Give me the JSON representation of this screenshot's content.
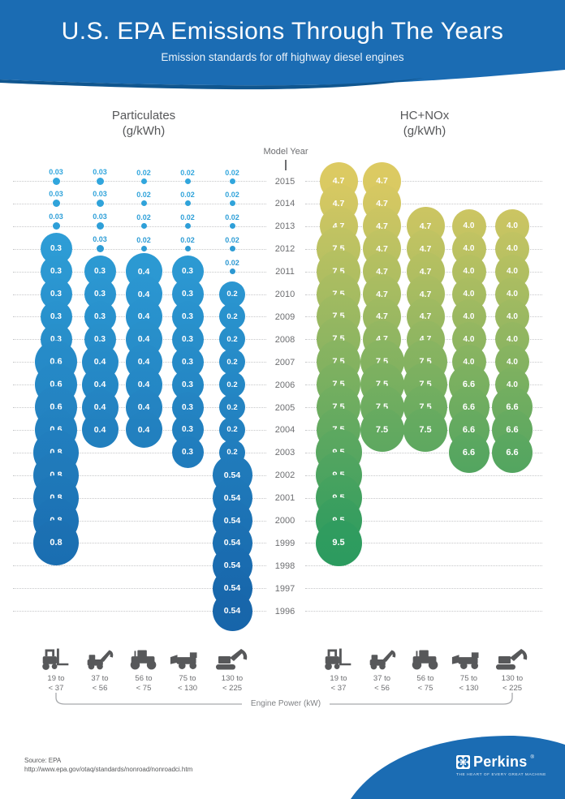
{
  "header": {
    "title": "U.S. EPA Emissions Through The Years",
    "subtitle": "Emission standards for off highway diesel engines"
  },
  "axis": {
    "label": "Model Year"
  },
  "chart_data": [
    {
      "type": "bubble",
      "title": "Particulates",
      "unit": "(g/kWh)",
      "gradient_top": "#31a6dd",
      "gradient_bottom": "#1765aa",
      "years": [
        "2015",
        "2014",
        "2013",
        "2012",
        "2011",
        "2010",
        "2009",
        "2008",
        "2007",
        "2006",
        "2005",
        "2004",
        "2003",
        "2002",
        "2001",
        "2000",
        "1999",
        "1998",
        "1997",
        "1996"
      ],
      "series": [
        {
          "name": "19 to < 37 kW",
          "values": [
            "0.03",
            "0.03",
            "0.03",
            "0.3",
            "0.3",
            "0.3",
            "0.3",
            "0.3",
            "0.6",
            "0.6",
            "0.6",
            "0.6",
            "0.8",
            "0.8",
            "0.8",
            "0.8",
            "0.8",
            null,
            null,
            null
          ]
        },
        {
          "name": "37 to < 56 kW",
          "values": [
            "0.03",
            "0.03",
            "0.03",
            "0.03",
            "0.3",
            "0.3",
            "0.3",
            "0.3",
            "0.4",
            "0.4",
            "0.4",
            "0.4",
            null,
            null,
            null,
            null,
            null,
            null,
            null,
            null
          ]
        },
        {
          "name": "56 to < 75 kW",
          "values": [
            "0.02",
            "0.02",
            "0.02",
            "0.02",
            "0.4",
            "0.4",
            "0.4",
            "0.4",
            "0.4",
            "0.4",
            "0.4",
            "0.4",
            null,
            null,
            null,
            null,
            null,
            null,
            null,
            null
          ]
        },
        {
          "name": "75 to < 130 kW",
          "values": [
            "0.02",
            "0.02",
            "0.02",
            "0.02",
            "0.3",
            "0.3",
            "0.3",
            "0.3",
            "0.3",
            "0.3",
            "0.3",
            "0.3",
            "0.3",
            null,
            null,
            null,
            null,
            null,
            null,
            null
          ]
        },
        {
          "name": "130 to < 225 kW",
          "values": [
            "0.02",
            "0.02",
            "0.02",
            "0.02",
            "0.02",
            "0.2",
            "0.2",
            "0.2",
            "0.2",
            "0.2",
            "0.2",
            "0.2",
            "0.2",
            "0.54",
            "0.54",
            "0.54",
            "0.54",
            "0.54",
            "0.54",
            "0.54"
          ]
        }
      ]
    },
    {
      "type": "bubble",
      "title": "HC+NOx",
      "unit": "(g/kWh)",
      "gradient_top": "#ddca62",
      "gradient_bottom": "#2c9b5f",
      "years": [
        "2015",
        "2014",
        "2013",
        "2012",
        "2011",
        "2010",
        "2009",
        "2008",
        "2007",
        "2006",
        "2005",
        "2004",
        "2003",
        "2002",
        "2001",
        "2000",
        "1999",
        "1998",
        "1997",
        "1996"
      ],
      "series": [
        {
          "name": "19 to < 37 kW",
          "values": [
            "4.7",
            "4.7",
            "4.7",
            "7.5",
            "7.5",
            "7.5",
            "7.5",
            "7.5",
            "7.5",
            "7.5",
            "7.5",
            "7.5",
            "9.5",
            "9.5",
            "9.5",
            "9.5",
            "9.5",
            null,
            null,
            null
          ]
        },
        {
          "name": "37 to < 56 kW",
          "values": [
            "4.7",
            "4.7",
            "4.7",
            "4.7",
            "4.7",
            "4.7",
            "4.7",
            "4.7",
            "7.5",
            "7.5",
            "7.5",
            "7.5",
            null,
            null,
            null,
            null,
            null,
            null,
            null,
            null
          ]
        },
        {
          "name": "56 to < 75 kW",
          "values": [
            null,
            null,
            "4.7",
            "4.7",
            "4.7",
            "4.7",
            "4.7",
            "4.7",
            "7.5",
            "7.5",
            "7.5",
            "7.5",
            null,
            null,
            null,
            null,
            null,
            null,
            null,
            null
          ]
        },
        {
          "name": "75 to < 130 kW",
          "values": [
            null,
            null,
            "4.0",
            "4.0",
            "4.0",
            "4.0",
            "4.0",
            "4.0",
            "4.0",
            "6.6",
            "6.6",
            "6.6",
            "6.6",
            null,
            null,
            null,
            null,
            null,
            null,
            null
          ]
        },
        {
          "name": "130 to < 225 kW",
          "values": [
            null,
            null,
            "4.0",
            "4.0",
            "4.0",
            "4.0",
            "4.0",
            "4.0",
            "4.0",
            "4.0",
            "6.6",
            "6.6",
            "6.6",
            null,
            null,
            null,
            null,
            null,
            null,
            null
          ]
        }
      ]
    }
  ],
  "legend": {
    "engine_power_label": "Engine Power (kW)",
    "items": [
      {
        "icon": "forklift-icon",
        "line1": "19 to",
        "line2": "< 37"
      },
      {
        "icon": "telehandler-icon",
        "line1": "37 to",
        "line2": "< 56"
      },
      {
        "icon": "tractor-icon",
        "line1": "56 to",
        "line2": "< 75"
      },
      {
        "icon": "dump-truck-icon",
        "line1": "75 to",
        "line2": "< 130"
      },
      {
        "icon": "excavator-icon",
        "line1": "130 to",
        "line2": "< 225"
      }
    ]
  },
  "source": {
    "line1": "Source: EPA",
    "line2": "http://www.epa.gov/otaq/standards/nonroad/nonroadci.htm"
  },
  "footer": {
    "brand": "Perkins",
    "registered": "®",
    "tagline": "THE HEART OF EVERY GREAT MACHINE"
  },
  "colors": {
    "header_blue": "#1b6cb3",
    "header_blue_dark": "#10568f",
    "particulates_top": "#31a6dd",
    "particulates_bottom": "#1765aa",
    "hcnox_top": "#ddca62",
    "hcnox_bottom": "#2c9b5f",
    "icon_gray": "#57585a"
  }
}
